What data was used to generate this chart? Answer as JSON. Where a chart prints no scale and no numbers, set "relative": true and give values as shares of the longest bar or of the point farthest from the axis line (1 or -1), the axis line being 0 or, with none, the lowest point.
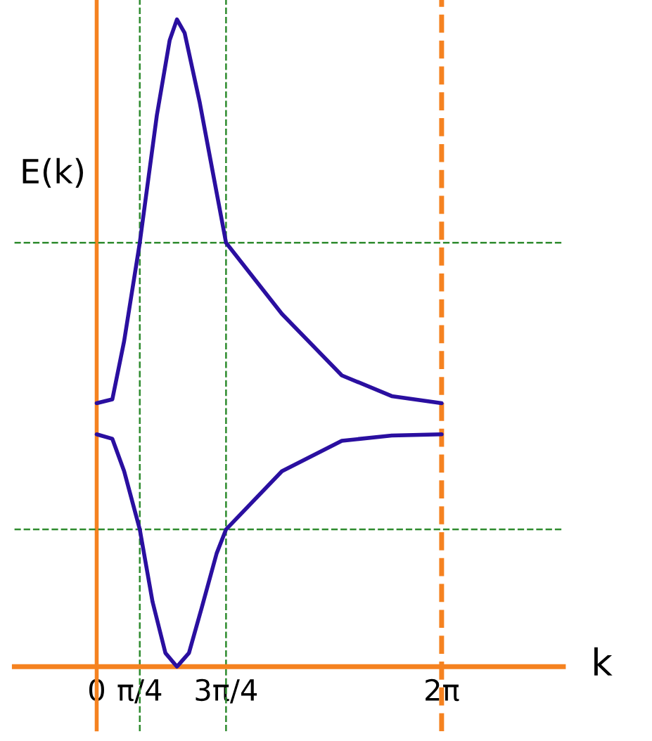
{
  "chart_data": {
    "type": "line",
    "relative": true,
    "xlabel": "k",
    "ylabel": "E(k)",
    "xlim": [
      -1.5,
      8.5
    ],
    "xticks": [
      0,
      {
        "value": 0.785,
        "label": "π/4"
      },
      {
        "value": 2.356,
        "label": "3π/4"
      },
      {
        "value": 6.283,
        "label": "2π"
      }
    ],
    "tick_labels": "x",
    "grid": false,
    "marker": "none",
    "line_style": "solid",
    "series": [
      {
        "color": "#2a0fa0",
        "x": [
          0,
          0.285,
          0.5,
          0.785,
          1.096,
          1.33,
          1.462,
          1.602,
          1.874,
          2.108,
          2.356,
          3.374,
          4.465,
          5.374,
          6.283
        ],
        "values": [
          0.407,
          0.413,
          0.503,
          0.655,
          0.852,
          0.968,
          1.0,
          0.979,
          0.873,
          0.767,
          0.655,
          0.545,
          0.45,
          0.418,
          0.407
        ]
      },
      {
        "color": "#2a0fa0",
        "x": [
          0,
          0.285,
          0.5,
          0.785,
          1.018,
          1.252,
          1.462,
          1.68,
          1.913,
          2.185,
          2.356,
          3.374,
          4.465,
          5.374,
          6.283
        ],
        "values": [
          0.359,
          0.352,
          0.302,
          0.212,
          0.1,
          0.021,
          0.0,
          0.021,
          0.091,
          0.175,
          0.212,
          0.302,
          0.349,
          0.357,
          0.359
        ]
      }
    ],
    "ref_lines": [
      {
        "axis": "x",
        "value": 0,
        "color": "#f58220",
        "line_style": "solid"
      },
      {
        "axis": "x",
        "value": 0.785,
        "color": "#2e8b2e",
        "line_style": "dashed"
      },
      {
        "axis": "x",
        "value": 2.356,
        "color": "#2e8b2e",
        "line_style": "dashed"
      },
      {
        "axis": "x",
        "value": 6.283,
        "color": "#f58220",
        "line_style": "dashed"
      },
      {
        "axis": "y",
        "value": 0.655,
        "color": "#2e8b2e",
        "line_style": "dashed"
      },
      {
        "axis": "y",
        "value": 0.212,
        "color": "#2e8b2e",
        "line_style": "dashed"
      }
    ]
  }
}
